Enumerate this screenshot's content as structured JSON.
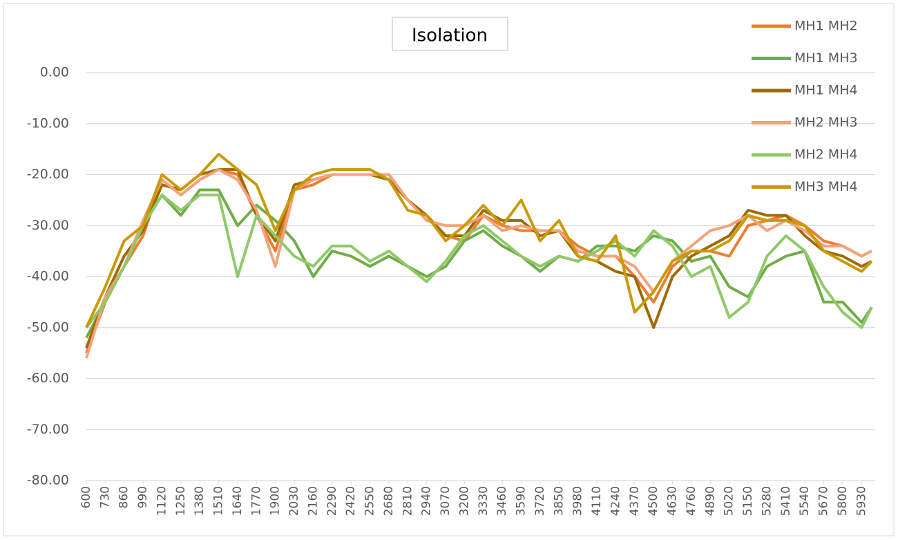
{
  "chart_data": {
    "type": "line",
    "title": "Isolation",
    "x": [
      600,
      730,
      860,
      990,
      1120,
      1250,
      1380,
      1510,
      1640,
      1770,
      1900,
      2030,
      2160,
      2290,
      2420,
      2550,
      2680,
      2810,
      2940,
      3070,
      3200,
      3330,
      3460,
      3590,
      3720,
      3850,
      3980,
      4110,
      4240,
      4370,
      4500,
      4630,
      4760,
      4890,
      5020,
      5150,
      5280,
      5410,
      5540,
      5670,
      5800,
      5930,
      6000
    ],
    "xlim": [
      600,
      6000
    ],
    "xticks": [
      600,
      730,
      860,
      990,
      1120,
      1250,
      1380,
      1510,
      1640,
      1770,
      1900,
      2030,
      2160,
      2290,
      2420,
      2550,
      2680,
      2810,
      2940,
      3070,
      3200,
      3330,
      3460,
      3590,
      3720,
      3850,
      3980,
      4110,
      4240,
      4370,
      4500,
      4630,
      4760,
      4890,
      5020,
      5150,
      5280,
      5410,
      5540,
      5670,
      5800,
      5930
    ],
    "ylim": [
      -80,
      0
    ],
    "yticks": [
      {
        "value": 0,
        "label": "0.00"
      },
      {
        "value": -10,
        "label": "-10.00"
      },
      {
        "value": -20,
        "label": "-20.00"
      },
      {
        "value": -30,
        "label": "-30.00"
      },
      {
        "value": -40,
        "label": "-40.00"
      },
      {
        "value": -50,
        "label": "-50.00"
      },
      {
        "value": -60,
        "label": "-60.00"
      },
      {
        "value": -70,
        "label": "-70.00"
      },
      {
        "value": -80,
        "label": "-80.00"
      }
    ],
    "grid": true,
    "legend": "upper right",
    "series": [
      {
        "name": "MH1 MH2",
        "color": "#ed7d31",
        "values": [
          -55,
          -45,
          -38,
          -32,
          -21,
          -24,
          -21,
          -19,
          -20,
          -28,
          -35,
          -23,
          -22,
          -20,
          -20,
          -20,
          -20,
          -25,
          -28,
          -32,
          -33,
          -28,
          -30,
          -31,
          -31,
          -31,
          -34,
          -36,
          -36,
          -40,
          -45,
          -38,
          -35,
          -35,
          -36,
          -30,
          -29,
          -28,
          -30,
          -33,
          -34,
          -36,
          -35
        ]
      },
      {
        "name": "MH1 MH3",
        "color": "#70ad47",
        "values": [
          -52,
          -45,
          -38,
          -30,
          -24,
          -28,
          -23,
          -23,
          -30,
          -26,
          -29,
          -33,
          -40,
          -35,
          -36,
          -38,
          -36,
          -38,
          -40,
          -38,
          -33,
          -31,
          -34,
          -36,
          -39,
          -36,
          -37,
          -34,
          -34,
          -35,
          -32,
          -33,
          -37,
          -36,
          -42,
          -44,
          -38,
          -36,
          -35,
          -45,
          -45,
          -49,
          -46
        ]
      },
      {
        "name": "MH1 MH4",
        "color": "#9e6a03",
        "values": [
          -54,
          -44,
          -36,
          -31,
          -22,
          -23,
          -20,
          -19,
          -19,
          -28,
          -33,
          -22,
          -21,
          -20,
          -20,
          -20,
          -21,
          -25,
          -28,
          -32,
          -32,
          -27,
          -29,
          -29,
          -32,
          -31,
          -36,
          -37,
          -39,
          -40,
          -50,
          -40,
          -36,
          -34,
          -32,
          -27,
          -28,
          -28,
          -32,
          -35,
          -36,
          -38,
          -37
        ]
      },
      {
        "name": "MH2 MH3",
        "color": "#f4a27a",
        "values": [
          -56,
          -44,
          -38,
          -29,
          -21,
          -24,
          -21,
          -19,
          -21,
          -27,
          -38,
          -23,
          -21,
          -20,
          -20,
          -20,
          -20,
          -25,
          -29,
          -30,
          -30,
          -28,
          -31,
          -30,
          -31,
          -31,
          -35,
          -36,
          -36,
          -38,
          -43,
          -37,
          -34,
          -31,
          -30,
          -28,
          -31,
          -29,
          -31,
          -34,
          -34,
          -36,
          -35
        ]
      },
      {
        "name": "MH2 MH4",
        "color": "#8fc96a",
        "values": [
          -50,
          -45,
          -38,
          -30,
          -24,
          -27,
          -24,
          -24,
          -40,
          -28,
          -32,
          -36,
          -38,
          -34,
          -34,
          -37,
          -35,
          -38,
          -41,
          -37,
          -32,
          -30,
          -33,
          -36,
          -38,
          -36,
          -37,
          -35,
          -33,
          -36,
          -31,
          -34,
          -40,
          -38,
          -48,
          -45,
          -36,
          -32,
          -35,
          -42,
          -47,
          -50,
          -46
        ]
      },
      {
        "name": "MH3 MH4",
        "color": "#c99a06",
        "values": [
          -50,
          -42,
          -33,
          -30,
          -20,
          -23,
          -20,
          -16,
          -19,
          -22,
          -31,
          -23,
          -20,
          -19,
          -19,
          -19,
          -21,
          -27,
          -28,
          -33,
          -30,
          -26,
          -30,
          -25,
          -33,
          -29,
          -36,
          -37,
          -32,
          -47,
          -43,
          -37,
          -35,
          -35,
          -33,
          -28,
          -29,
          -29,
          -30,
          -35,
          -37,
          -39,
          -37
        ]
      }
    ]
  }
}
